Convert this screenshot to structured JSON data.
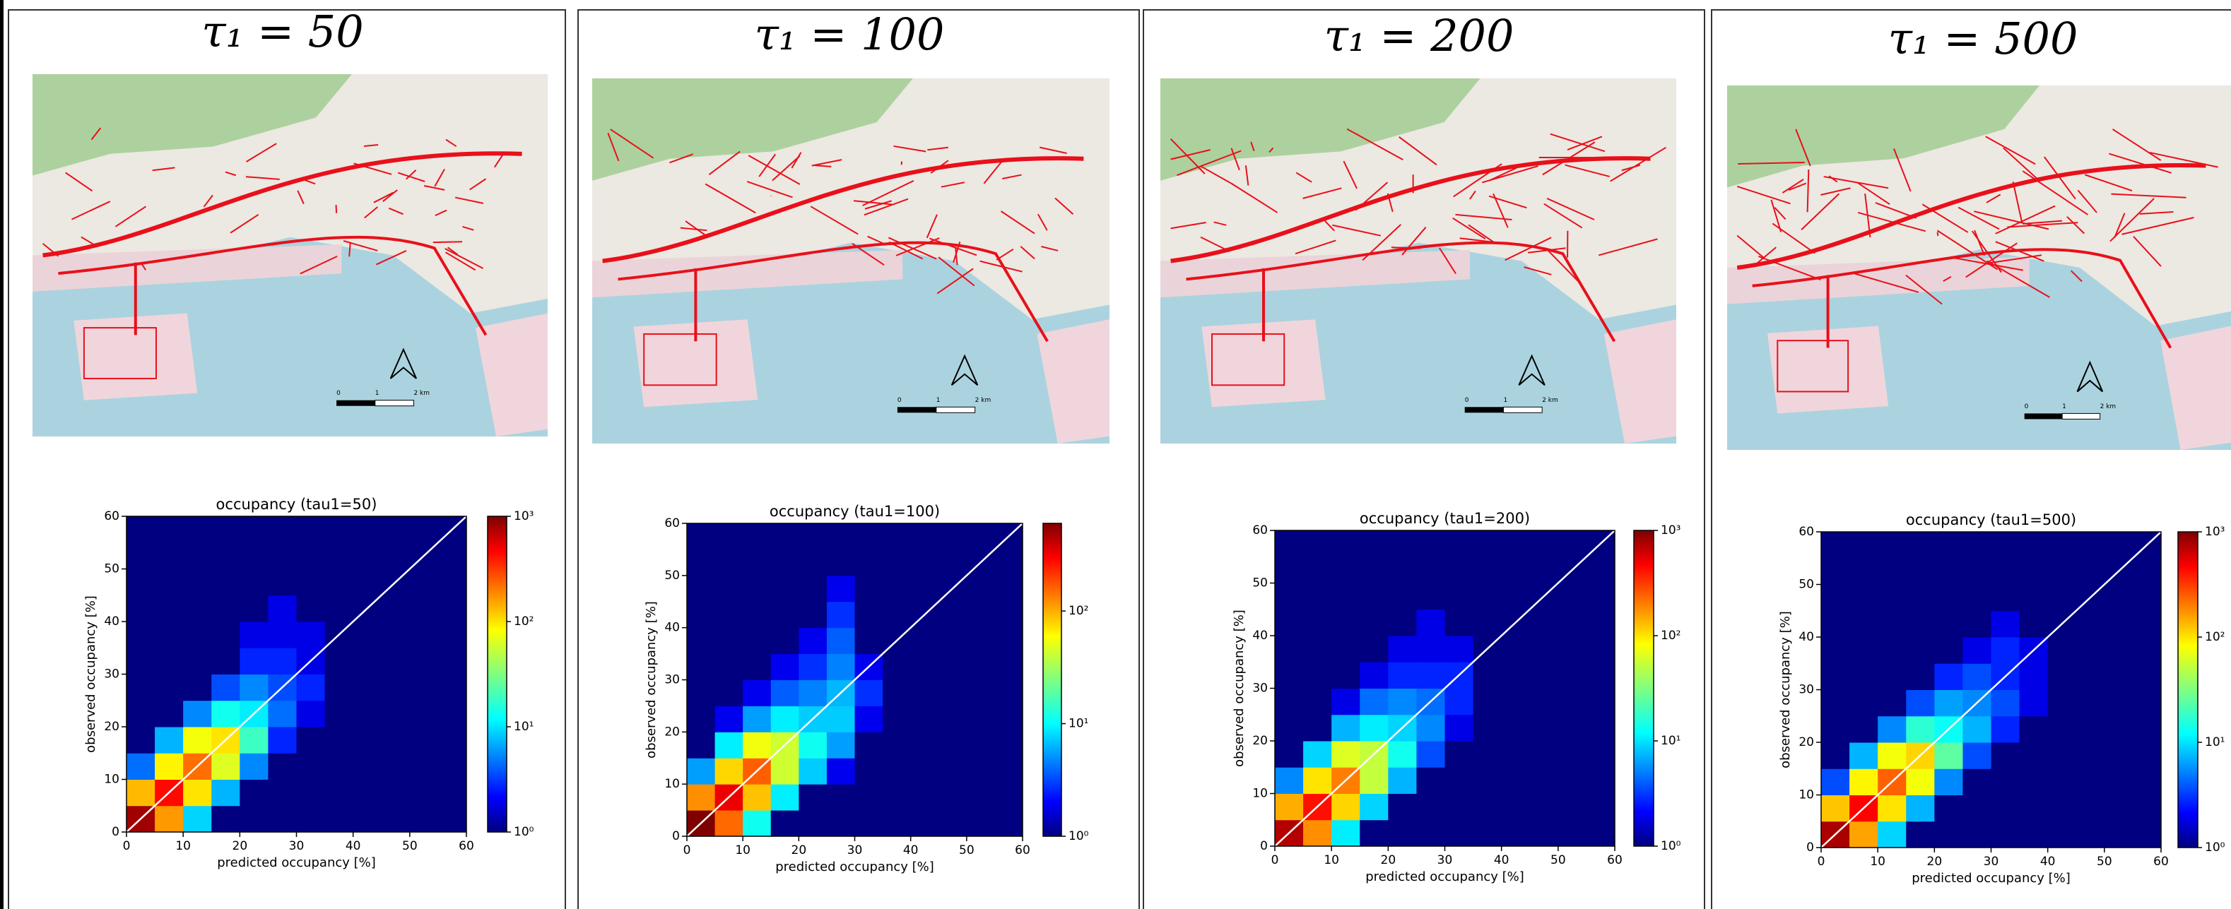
{
  "chart_data": [
    {
      "type": "hist2d",
      "heading": "τ₁ = 50",
      "title": "occupancy (tau1=50)",
      "xlabel": "predicted occupancy [%]",
      "ylabel": "observed occupancy [%]",
      "map_scale_labels": [
        "0",
        "1",
        "2 km"
      ],
      "xbins": [
        0,
        5,
        10,
        15,
        20,
        25,
        30,
        35,
        40,
        45,
        50,
        55,
        60
      ],
      "ybins": [
        0,
        5,
        10,
        15,
        20,
        25,
        30,
        35,
        40,
        45,
        50,
        55,
        60
      ],
      "counts": [
        [
          800,
          150,
          10,
          1,
          0,
          0,
          0,
          0,
          0,
          0,
          0,
          0
        ],
        [
          120,
          400,
          90,
          8,
          1,
          0,
          0,
          0,
          0,
          0,
          0,
          0
        ],
        [
          5,
          80,
          200,
          60,
          6,
          1,
          0,
          0,
          0,
          0,
          0,
          0
        ],
        [
          1,
          8,
          70,
          90,
          20,
          3,
          1,
          0,
          0,
          0,
          0,
          0
        ],
        [
          0,
          1,
          6,
          15,
          12,
          5,
          2,
          0,
          0,
          0,
          0,
          0
        ],
        [
          0,
          0,
          1,
          4,
          6,
          4,
          3,
          1,
          0,
          0,
          0,
          0
        ],
        [
          0,
          0,
          0,
          1,
          3,
          3,
          2,
          1,
          0,
          0,
          0,
          0
        ],
        [
          0,
          0,
          0,
          1,
          2,
          2,
          2,
          1,
          0,
          0,
          0,
          0
        ],
        [
          0,
          0,
          0,
          0,
          1,
          2,
          1,
          1,
          0,
          0,
          0,
          0
        ],
        [
          0,
          0,
          0,
          0,
          1,
          1,
          1,
          0,
          0,
          0,
          0,
          0
        ],
        [
          0,
          0,
          0,
          0,
          0,
          1,
          0,
          0,
          0,
          0,
          0,
          0
        ],
        [
          0,
          0,
          0,
          0,
          0,
          0,
          0,
          0,
          0,
          0,
          0,
          0
        ]
      ],
      "xlim": [
        0,
        60
      ],
      "ylim": [
        0,
        60
      ],
      "xticks": [
        0,
        10,
        20,
        30,
        40,
        50,
        60
      ],
      "yticks": [
        0,
        10,
        20,
        30,
        40,
        50,
        60
      ],
      "colorbar": {
        "scale": "log",
        "clim": [
          1,
          1000
        ],
        "ticks": [
          {
            "value": 1,
            "label": "10⁰"
          },
          {
            "value": 10,
            "label": "10¹"
          },
          {
            "value": 100,
            "label": "10²"
          },
          {
            "value": 1000,
            "label": "10³"
          }
        ]
      }
    },
    {
      "type": "hist2d",
      "heading": "τ₁ = 100",
      "title": "occupancy (tau1=100)",
      "xlabel": "predicted occupancy [%]",
      "ylabel": "observed occupancy [%]",
      "map_scale_labels": [
        "0",
        "1",
        "2 km"
      ],
      "xbins": [
        0,
        5,
        10,
        15,
        20,
        25,
        30,
        35,
        40,
        45,
        50,
        55,
        60
      ],
      "ybins": [
        0,
        5,
        10,
        15,
        20,
        25,
        30,
        35,
        40,
        45,
        50,
        55,
        60
      ],
      "counts": [
        [
          600,
          140,
          12,
          1,
          0,
          0,
          0,
          0,
          0,
          0,
          0,
          0
        ],
        [
          110,
          300,
          80,
          10,
          1,
          0,
          0,
          0,
          0,
          0,
          0,
          0
        ],
        [
          6,
          70,
          150,
          40,
          8,
          2,
          0,
          0,
          0,
          0,
          0,
          0
        ],
        [
          1,
          10,
          50,
          40,
          12,
          6,
          1,
          0,
          0,
          0,
          0,
          0
        ],
        [
          0,
          2,
          6,
          10,
          8,
          8,
          2,
          0,
          0,
          0,
          0,
          0
        ],
        [
          0,
          0,
          2,
          4,
          5,
          7,
          3,
          1,
          0,
          0,
          0,
          0
        ],
        [
          0,
          0,
          1,
          2,
          3,
          5,
          2,
          1,
          0,
          0,
          0,
          0
        ],
        [
          0,
          0,
          0,
          1,
          2,
          4,
          1,
          0,
          0,
          0,
          0,
          0
        ],
        [
          0,
          0,
          0,
          1,
          1,
          3,
          1,
          0,
          0,
          0,
          0,
          0
        ],
        [
          0,
          0,
          0,
          0,
          1,
          2,
          0,
          0,
          0,
          0,
          0,
          0
        ],
        [
          0,
          0,
          0,
          0,
          0,
          1,
          0,
          0,
          0,
          0,
          0,
          0
        ],
        [
          0,
          0,
          0,
          0,
          0,
          0,
          0,
          0,
          0,
          0,
          0,
          0
        ]
      ],
      "xlim": [
        0,
        60
      ],
      "ylim": [
        0,
        60
      ],
      "xticks": [
        0,
        10,
        20,
        30,
        40,
        50,
        60
      ],
      "yticks": [
        0,
        10,
        20,
        30,
        40,
        50,
        60
      ],
      "colorbar": {
        "scale": "log",
        "clim": [
          1,
          600
        ],
        "ticks": [
          {
            "value": 1,
            "label": "10⁰"
          },
          {
            "value": 10,
            "label": "10¹"
          },
          {
            "value": 100,
            "label": "10²"
          }
        ]
      }
    },
    {
      "type": "hist2d",
      "heading": "τ₁ = 200",
      "title": "occupancy (tau1=200)",
      "xlabel": "predicted occupancy [%]",
      "ylabel": "observed occupancy [%]",
      "map_scale_labels": [
        "0",
        "1",
        "2 km"
      ],
      "xbins": [
        0,
        5,
        10,
        15,
        20,
        25,
        30,
        35,
        40,
        45,
        50,
        55,
        60
      ],
      "ybins": [
        0,
        5,
        10,
        15,
        20,
        25,
        30,
        35,
        40,
        45,
        50,
        55,
        60
      ],
      "counts": [
        [
          700,
          160,
          12,
          1,
          0,
          0,
          0,
          0,
          0,
          0,
          0,
          0
        ],
        [
          130,
          380,
          100,
          10,
          1,
          0,
          0,
          0,
          0,
          0,
          0,
          0
        ],
        [
          6,
          90,
          180,
          50,
          8,
          1,
          0,
          0,
          0,
          0,
          0,
          0
        ],
        [
          1,
          10,
          60,
          50,
          15,
          4,
          1,
          0,
          0,
          0,
          0,
          0
        ],
        [
          0,
          1,
          8,
          12,
          10,
          6,
          2,
          1,
          0,
          0,
          0,
          0
        ],
        [
          0,
          0,
          2,
          5,
          6,
          5,
          3,
          1,
          0,
          0,
          0,
          0
        ],
        [
          0,
          0,
          1,
          2,
          3,
          3,
          3,
          1,
          0,
          0,
          0,
          0
        ],
        [
          0,
          0,
          0,
          1,
          2,
          2,
          2,
          1,
          0,
          0,
          0,
          0
        ],
        [
          0,
          0,
          0,
          0,
          1,
          2,
          1,
          0,
          0,
          0,
          0,
          0
        ],
        [
          0,
          0,
          0,
          0,
          1,
          1,
          0,
          0,
          0,
          0,
          0,
          0
        ],
        [
          0,
          0,
          0,
          0,
          0,
          1,
          0,
          0,
          0,
          0,
          0,
          0
        ],
        [
          0,
          0,
          0,
          0,
          0,
          0,
          0,
          0,
          0,
          0,
          0,
          0
        ]
      ],
      "xlim": [
        0,
        60
      ],
      "ylim": [
        0,
        60
      ],
      "xticks": [
        0,
        10,
        20,
        30,
        40,
        50,
        60
      ],
      "yticks": [
        0,
        10,
        20,
        30,
        40,
        50,
        60
      ],
      "colorbar": {
        "scale": "log",
        "clim": [
          1,
          1000
        ],
        "ticks": [
          {
            "value": 1,
            "label": "10⁰"
          },
          {
            "value": 10,
            "label": "10¹"
          },
          {
            "value": 100,
            "label": "10²"
          },
          {
            "value": 1000,
            "label": "10³"
          }
        ]
      }
    },
    {
      "type": "hist2d",
      "heading": "τ₁ = 500",
      "title": "occupancy (tau1=500)",
      "xlabel": "predicted occupancy [%]",
      "ylabel": "observed occupancy [%]",
      "map_scale_labels": [
        "0",
        "1",
        "2 km"
      ],
      "xbins": [
        0,
        5,
        10,
        15,
        20,
        25,
        30,
        35,
        40,
        45,
        50,
        55,
        60
      ],
      "ybins": [
        0,
        5,
        10,
        15,
        20,
        25,
        30,
        35,
        40,
        45,
        50,
        55,
        60
      ],
      "counts": [
        [
          750,
          140,
          10,
          1,
          0,
          0,
          0,
          0,
          0,
          0,
          0,
          0
        ],
        [
          110,
          420,
          90,
          8,
          1,
          0,
          0,
          0,
          0,
          0,
          0,
          0
        ],
        [
          4,
          80,
          220,
          70,
          6,
          1,
          0,
          0,
          0,
          0,
          0,
          0
        ],
        [
          1,
          8,
          70,
          100,
          25,
          4,
          1,
          0,
          0,
          0,
          0,
          0
        ],
        [
          0,
          1,
          6,
          18,
          14,
          8,
          3,
          1,
          0,
          0,
          0,
          0
        ],
        [
          0,
          0,
          1,
          4,
          7,
          6,
          4,
          2,
          0,
          0,
          0,
          0
        ],
        [
          0,
          0,
          0,
          1,
          3,
          4,
          3,
          2,
          1,
          0,
          0,
          0
        ],
        [
          0,
          0,
          0,
          1,
          1,
          2,
          3,
          2,
          1,
          0,
          0,
          0
        ],
        [
          0,
          0,
          0,
          0,
          1,
          1,
          2,
          1,
          0,
          0,
          0,
          0
        ],
        [
          0,
          0,
          0,
          0,
          0,
          1,
          1,
          0,
          0,
          0,
          0,
          0
        ],
        [
          0,
          0,
          0,
          0,
          0,
          0,
          1,
          0,
          0,
          0,
          0,
          0
        ],
        [
          0,
          0,
          0,
          0,
          0,
          0,
          0,
          0,
          0,
          0,
          0,
          0
        ]
      ],
      "xlim": [
        0,
        60
      ],
      "ylim": [
        0,
        60
      ],
      "xticks": [
        0,
        10,
        20,
        30,
        40,
        50,
        60
      ],
      "yticks": [
        0,
        10,
        20,
        30,
        40,
        50,
        60
      ],
      "colorbar": {
        "scale": "log",
        "clim": [
          1,
          1000
        ],
        "ticks": [
          {
            "value": 1,
            "label": "10⁰"
          },
          {
            "value": 10,
            "label": "10¹"
          },
          {
            "value": 100,
            "label": "10²"
          },
          {
            "value": 1000,
            "label": "10³"
          }
        ]
      }
    }
  ]
}
